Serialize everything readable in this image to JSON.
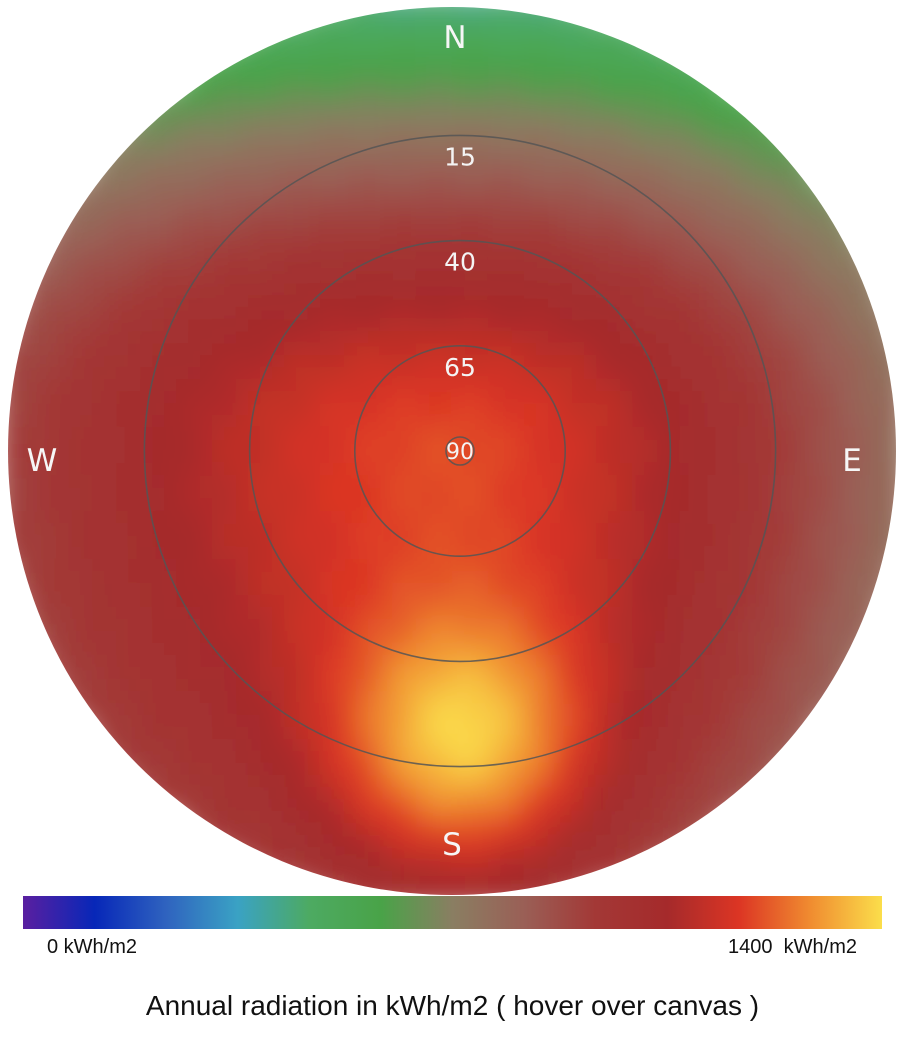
{
  "chart_data": {
    "type": "heatmap",
    "projection": "polar-sky",
    "title": "",
    "caption": "Annual radiation in kWh/m2 ( hover over canvas )",
    "compass": {
      "north": "N",
      "south": "S",
      "east": "E",
      "west": "W"
    },
    "altitude_rings": [
      {
        "altitude": 15,
        "label": "15"
      },
      {
        "altitude": 40,
        "label": "40"
      },
      {
        "altitude": 65,
        "label": "65"
      },
      {
        "altitude": 90,
        "label": "90"
      }
    ],
    "colorbar": {
      "min": 0,
      "max": 1400,
      "min_label": "0 kWh/m2",
      "max_label": "1400  kWh/m2",
      "colors": [
        "#5a1fa0",
        "#0727b8",
        "#2f63bf",
        "#3aa2c4",
        "#4daa62",
        "#49a348",
        "#8a7e62",
        "#9a5f56",
        "#a33836",
        "#a52a2b",
        "#dc3524",
        "#f08c30",
        "#fbde4b"
      ]
    },
    "peak_radiation": {
      "azimuth_deg": 178,
      "altitude_deg": 30,
      "value": 1400
    },
    "radiation_at_horizon": {
      "N": 430,
      "E": 760,
      "S": 940,
      "W": 900
    }
  }
}
